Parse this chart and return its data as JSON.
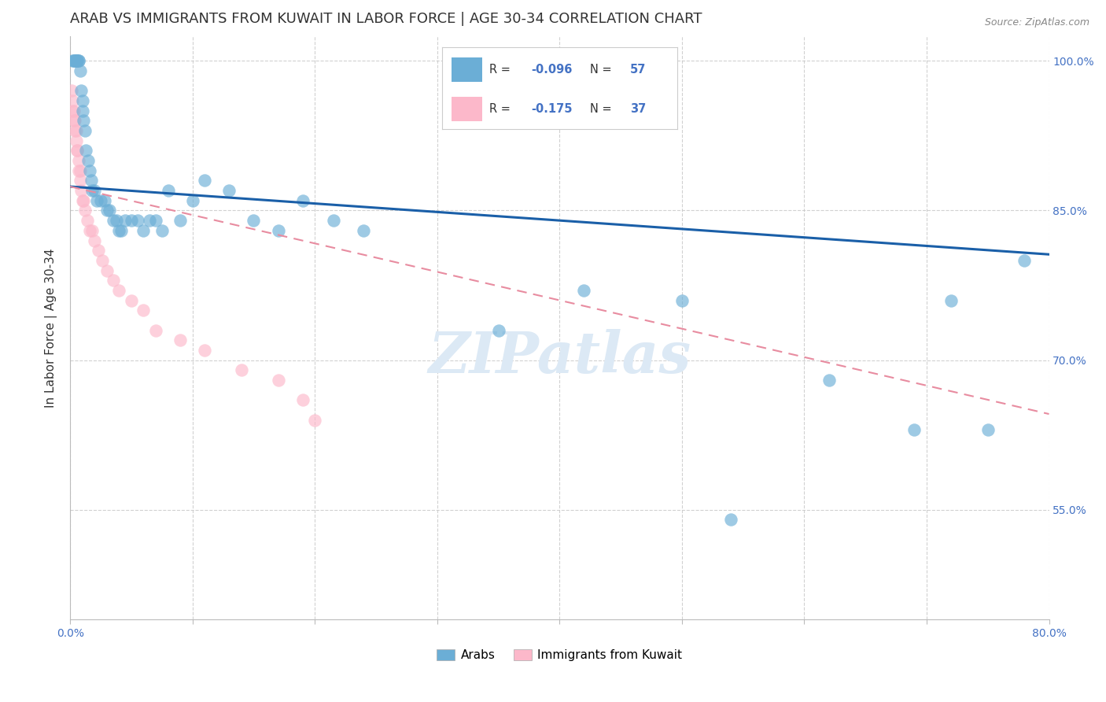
{
  "title": "ARAB VS IMMIGRANTS FROM KUWAIT IN LABOR FORCE | AGE 30-34 CORRELATION CHART",
  "source": "Source: ZipAtlas.com",
  "ylabel": "In Labor Force | Age 30-34",
  "x_min": 0.0,
  "x_max": 0.8,
  "y_min": 0.44,
  "y_max": 1.025,
  "blue_color": "#6baed6",
  "pink_color": "#fcb8ca",
  "blue_line_color": "#1a5fa8",
  "pink_line_color": "#e88ca0",
  "watermark": "ZIPatlas",
  "watermark_color": "#dce9f5",
  "blue_r": -0.096,
  "blue_n": 57,
  "pink_r": -0.175,
  "pink_n": 37,
  "blue_line_x0": 0.0,
  "blue_line_y0": 0.874,
  "blue_line_x1": 0.8,
  "blue_line_y1": 0.806,
  "pink_line_x0": 0.0,
  "pink_line_y0": 0.874,
  "pink_line_x1": 0.8,
  "pink_line_y1": 0.646,
  "blue_dots_x": [
    0.002,
    0.003,
    0.003,
    0.004,
    0.005,
    0.005,
    0.006,
    0.006,
    0.007,
    0.007,
    0.008,
    0.009,
    0.01,
    0.01,
    0.011,
    0.012,
    0.013,
    0.015,
    0.016,
    0.017,
    0.018,
    0.02,
    0.022,
    0.025,
    0.028,
    0.03,
    0.032,
    0.035,
    0.038,
    0.04,
    0.042,
    0.045,
    0.05,
    0.055,
    0.06,
    0.065,
    0.07,
    0.075,
    0.08,
    0.09,
    0.1,
    0.11,
    0.13,
    0.15,
    0.17,
    0.19,
    0.215,
    0.24,
    0.35,
    0.42,
    0.5,
    0.54,
    0.62,
    0.69,
    0.72,
    0.75,
    0.78
  ],
  "blue_dots_y": [
    1.0,
    1.0,
    1.0,
    1.0,
    1.0,
    1.0,
    1.0,
    1.0,
    1.0,
    1.0,
    0.99,
    0.97,
    0.96,
    0.95,
    0.94,
    0.93,
    0.91,
    0.9,
    0.89,
    0.88,
    0.87,
    0.87,
    0.86,
    0.86,
    0.86,
    0.85,
    0.85,
    0.84,
    0.84,
    0.83,
    0.83,
    0.84,
    0.84,
    0.84,
    0.83,
    0.84,
    0.84,
    0.83,
    0.87,
    0.84,
    0.86,
    0.88,
    0.87,
    0.84,
    0.83,
    0.86,
    0.84,
    0.83,
    0.73,
    0.77,
    0.76,
    0.54,
    0.68,
    0.63,
    0.76,
    0.63,
    0.8
  ],
  "pink_dots_x": [
    0.001,
    0.002,
    0.002,
    0.003,
    0.003,
    0.004,
    0.004,
    0.005,
    0.005,
    0.006,
    0.006,
    0.007,
    0.007,
    0.008,
    0.008,
    0.009,
    0.01,
    0.011,
    0.012,
    0.014,
    0.016,
    0.018,
    0.02,
    0.023,
    0.026,
    0.03,
    0.035,
    0.04,
    0.05,
    0.06,
    0.07,
    0.09,
    0.11,
    0.14,
    0.17,
    0.19,
    0.2
  ],
  "pink_dots_y": [
    0.97,
    0.96,
    0.95,
    0.95,
    0.94,
    0.94,
    0.93,
    0.93,
    0.92,
    0.91,
    0.91,
    0.9,
    0.89,
    0.89,
    0.88,
    0.87,
    0.86,
    0.86,
    0.85,
    0.84,
    0.83,
    0.83,
    0.82,
    0.81,
    0.8,
    0.79,
    0.78,
    0.77,
    0.76,
    0.75,
    0.73,
    0.72,
    0.71,
    0.69,
    0.68,
    0.66,
    0.64
  ],
  "title_fontsize": 13,
  "axis_label_fontsize": 11,
  "tick_fontsize": 10,
  "legend_fontsize": 11
}
